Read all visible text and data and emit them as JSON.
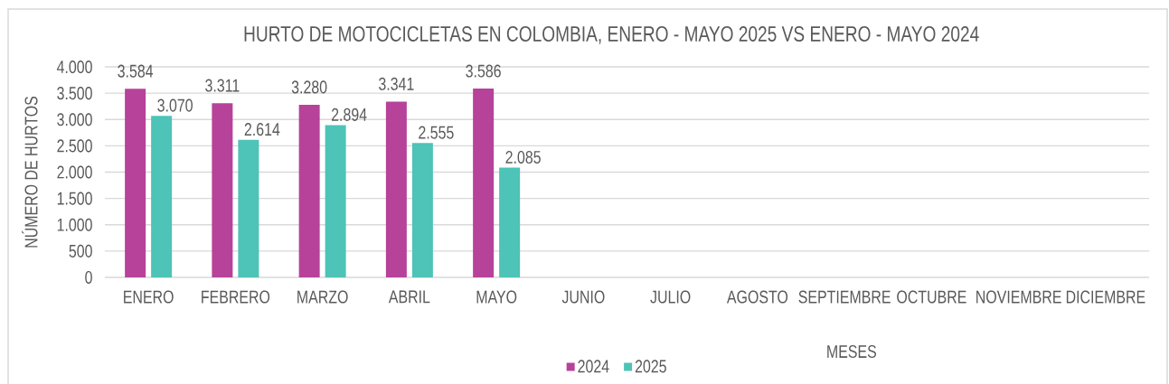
{
  "chart_data": {
    "type": "bar",
    "title": "HURTO DE MOTOCICLETAS EN COLOMBIA, ENERO - MAYO 2025 VS ENERO - MAYO 2024",
    "xlabel": "MESES",
    "ylabel": "NÚMERO DE HURTOS",
    "categories": [
      "ENERO",
      "FEBRERO",
      "MARZO",
      "ABRIL",
      "MAYO",
      "JUNIO",
      "JULIO",
      "AGOSTO",
      "SEPTIEMBRE",
      "OCTUBRE",
      "NOVIEMBRE",
      "DICIEMBRE"
    ],
    "series": [
      {
        "name": "2024",
        "color": "#b7429a",
        "values": [
          3584,
          3311,
          3280,
          3341,
          3586,
          null,
          null,
          null,
          null,
          null,
          null,
          null
        ],
        "value_labels": [
          "3.584",
          "3.311",
          "3.280",
          "3.341",
          "3.586",
          null,
          null,
          null,
          null,
          null,
          null,
          null
        ]
      },
      {
        "name": "2025",
        "color": "#4ec3b8",
        "values": [
          3070,
          2614,
          2894,
          2555,
          2085,
          null,
          null,
          null,
          null,
          null,
          null,
          null
        ],
        "value_labels": [
          "3.070",
          "2.614",
          "2.894",
          "2.555",
          "2.085",
          null,
          null,
          null,
          null,
          null,
          null,
          null
        ]
      }
    ],
    "ylim": [
      0,
      4000
    ],
    "yticks": [
      0,
      500,
      {
        "value": 1000,
        "label": "1.000"
      },
      {
        "value": 1500,
        "label": "1.500"
      },
      {
        "value": 2000,
        "label": "2.000"
      },
      {
        "value": 2500,
        "label": "2.500"
      },
      {
        "value": 3000,
        "label": "3.000"
      },
      {
        "value": 3500,
        "label": "3.500"
      },
      {
        "value": 4000,
        "label": "4.000"
      }
    ],
    "grid": "y",
    "legend": "bottom"
  }
}
